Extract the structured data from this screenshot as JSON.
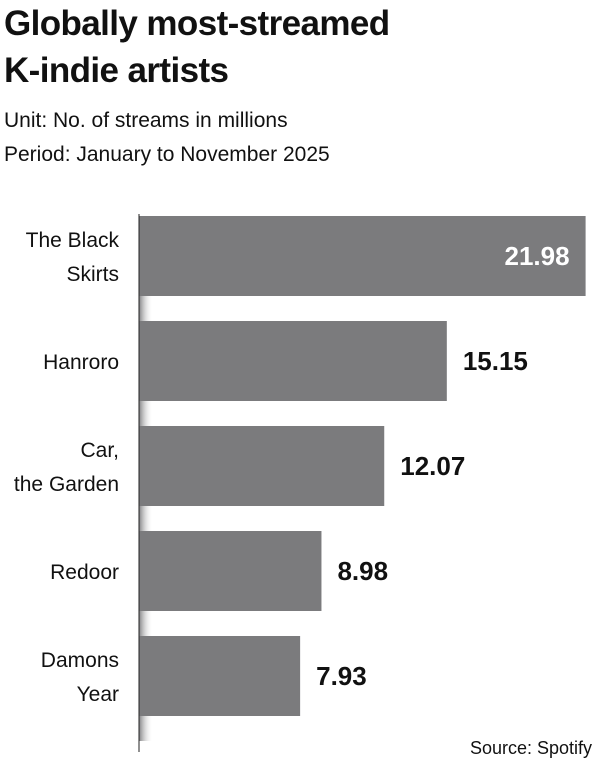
{
  "title": {
    "line1": "Globally most-streamed",
    "line2": "K-indie artists"
  },
  "unit": "Unit: No. of streams in millions",
  "period": "Period: January to November 2025",
  "source": "Source: Spotify",
  "colors": {
    "bar": "#7b7b7d",
    "text": "#111111",
    "inside_label": "#ffffff",
    "axis": "#222222"
  },
  "chart_data": {
    "type": "bar",
    "orientation": "horizontal",
    "categories": [
      [
        "The Black",
        "Skirts"
      ],
      [
        "Hanroro"
      ],
      [
        "Car,",
        "the Garden"
      ],
      [
        "Redoor"
      ],
      [
        "Damons",
        "Year"
      ]
    ],
    "values": [
      21.98,
      15.15,
      12.07,
      8.98,
      7.93
    ],
    "value_labels": [
      "21.98",
      "15.15",
      "12.07",
      "8.98",
      "7.93"
    ],
    "xlim": [
      0,
      22
    ],
    "grid": false,
    "legend": "none"
  }
}
